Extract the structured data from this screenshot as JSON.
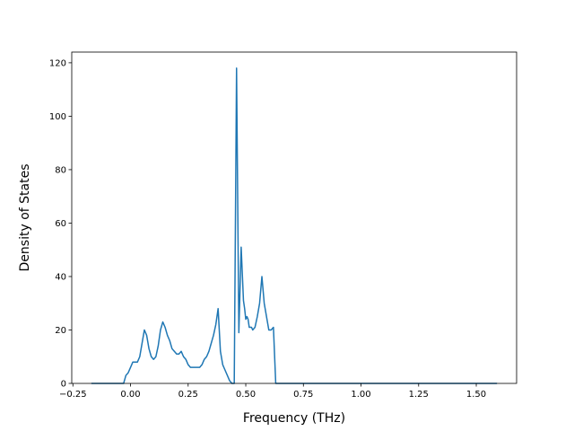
{
  "chart_data": {
    "type": "line",
    "xlabel": "Frequency (THz)",
    "ylabel": "Density of States",
    "xlim": [
      -0.255,
      1.675
    ],
    "ylim": [
      0,
      124
    ],
    "xticks": [
      -0.25,
      0.0,
      0.25,
      0.5,
      0.75,
      1.0,
      1.25,
      1.5
    ],
    "xtick_labels": [
      "−0.25",
      "0.00",
      "0.25",
      "0.50",
      "0.75",
      "1.00",
      "1.25",
      "1.50"
    ],
    "yticks": [
      0,
      20,
      40,
      60,
      80,
      100,
      120
    ],
    "ytick_labels": [
      "0",
      "20",
      "40",
      "60",
      "80",
      "100",
      "120"
    ],
    "grid": false,
    "series": [
      {
        "color": "#1f77b4",
        "x": [
          -0.17,
          -0.03,
          -0.02,
          -0.01,
          0.0,
          0.01,
          0.02,
          0.03,
          0.04,
          0.05,
          0.06,
          0.065,
          0.07,
          0.08,
          0.09,
          0.1,
          0.11,
          0.12,
          0.13,
          0.14,
          0.15,
          0.16,
          0.17,
          0.18,
          0.19,
          0.2,
          0.21,
          0.22,
          0.23,
          0.24,
          0.25,
          0.26,
          0.27,
          0.28,
          0.29,
          0.3,
          0.31,
          0.32,
          0.33,
          0.34,
          0.35,
          0.36,
          0.37,
          0.38,
          0.39,
          0.4,
          0.41,
          0.42,
          0.43,
          0.44,
          0.45,
          0.46,
          0.47,
          0.48,
          0.49,
          0.495,
          0.5,
          0.505,
          0.51,
          0.515,
          0.52,
          0.525,
          0.53,
          0.54,
          0.55,
          0.56,
          0.57,
          0.58,
          0.59,
          0.6,
          0.61,
          0.62,
          0.63,
          0.64,
          0.65,
          0.655,
          0.66,
          0.67,
          0.68,
          0.69,
          0.695,
          0.7,
          0.8,
          1.0,
          1.2,
          1.25,
          1.26,
          1.27,
          1.28,
          1.29,
          1.3,
          1.31,
          1.32,
          1.325,
          1.33,
          1.335,
          1.34,
          1.345,
          1.35,
          1.36,
          1.37,
          1.38,
          1.39,
          1.4,
          1.41,
          1.415,
          1.42,
          1.43,
          1.44,
          1.45,
          1.5,
          1.59
        ],
        "y": [
          0,
          0,
          3,
          4,
          6,
          8,
          8,
          8,
          10,
          15,
          20,
          19,
          18,
          13,
          10,
          9,
          10,
          14,
          20,
          23,
          21,
          18,
          16,
          13,
          12,
          11,
          11,
          12,
          10,
          9,
          7,
          6,
          6,
          6,
          6,
          6,
          7,
          9,
          10,
          12,
          15,
          18,
          22,
          28,
          12,
          7,
          5,
          3,
          1,
          0,
          0,
          118,
          19,
          51,
          31,
          28,
          24,
          25,
          24,
          21,
          21,
          21,
          20,
          21,
          25,
          30,
          40,
          30,
          25,
          20,
          20,
          21,
          0,
          0,
          0,
          0,
          0,
          0,
          0,
          0,
          0,
          0,
          0,
          0,
          0,
          0,
          0,
          0,
          0,
          0,
          0,
          0,
          0,
          0,
          0,
          0,
          0,
          0,
          0,
          0,
          0,
          0,
          0,
          0,
          0,
          0,
          0,
          0,
          0,
          0,
          0,
          0
        ]
      }
    ]
  }
}
